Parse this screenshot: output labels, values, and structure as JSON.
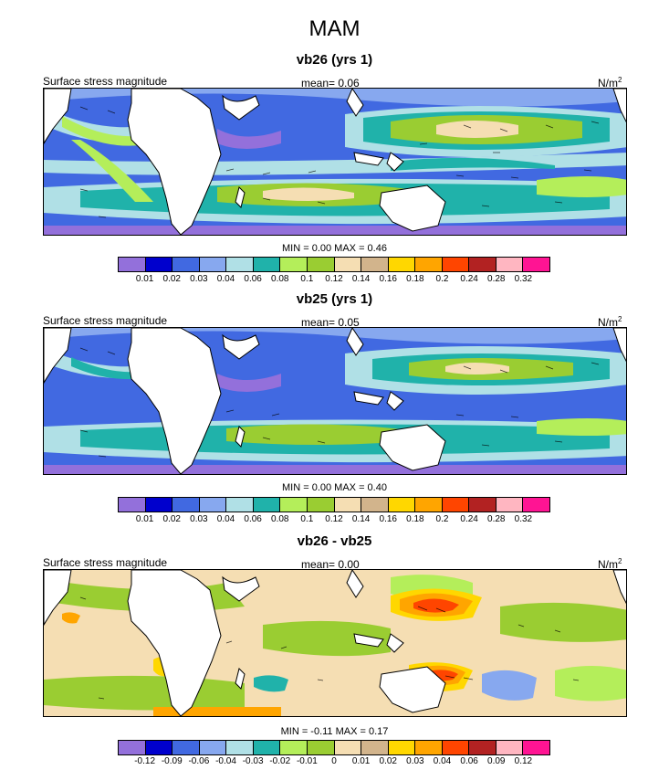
{
  "figure": {
    "title": "MAM"
  },
  "colors": {
    "abs_scale": [
      "#9370db",
      "#0000cd",
      "#4169e1",
      "#87a8ef",
      "#b0e0e6",
      "#20b2aa",
      "#b4ee5a",
      "#9acd32",
      "#f5deb3",
      "#d2b48c",
      "#ffd700",
      "#ffa500",
      "#ff4500",
      "#b22222",
      "#ffb6c1",
      "#ff1493"
    ],
    "diff_scale": [
      "#9370db",
      "#0000cd",
      "#4169e1",
      "#87a8ef",
      "#b0e0e6",
      "#20b2aa",
      "#b4ee5a",
      "#9acd32",
      "#f5deb3",
      "#d2b48c",
      "#ffd700",
      "#ffa500",
      "#ff4500",
      "#b22222",
      "#ffb6c1",
      "#ff1493"
    ],
    "land": "#ffffff",
    "coast": "#000000"
  },
  "panels": [
    {
      "title": "vb26 (yrs 1)",
      "left_label": "Surface stress magnitude",
      "mean_label": "mean=  0.06",
      "units": "N/m",
      "units_sup": "2",
      "minmax": "MIN =  0.00 MAX =  0.46",
      "ticks": [
        "0.01",
        "0.02",
        "0.03",
        "0.04",
        "0.06",
        "0.08",
        "0.1",
        "0.12",
        "0.14",
        "0.16",
        "0.18",
        "0.2",
        "0.24",
        "0.28",
        "0.32"
      ]
    },
    {
      "title": "vb25 (yrs 1)",
      "left_label": "Surface stress magnitude",
      "mean_label": "mean=  0.05",
      "units": "N/m",
      "units_sup": "2",
      "minmax": "MIN =  0.00 MAX =  0.40",
      "ticks": [
        "0.01",
        "0.02",
        "0.03",
        "0.04",
        "0.06",
        "0.08",
        "0.1",
        "0.12",
        "0.14",
        "0.16",
        "0.18",
        "0.2",
        "0.24",
        "0.28",
        "0.32"
      ]
    },
    {
      "title": "vb26 - vb25",
      "left_label": "Surface stress magnitude",
      "mean_label": "mean=  0.00",
      "units": "N/m",
      "units_sup": "2",
      "minmax": "MIN =  -0.11 MAX =  0.17",
      "ticks": [
        "-0.12",
        "-0.09",
        "-0.06",
        "-0.04",
        "-0.03",
        "-0.02",
        "-0.01",
        "0",
        "0.01",
        "0.02",
        "0.03",
        "0.04",
        "0.06",
        "0.09",
        "0.12"
      ]
    }
  ]
}
